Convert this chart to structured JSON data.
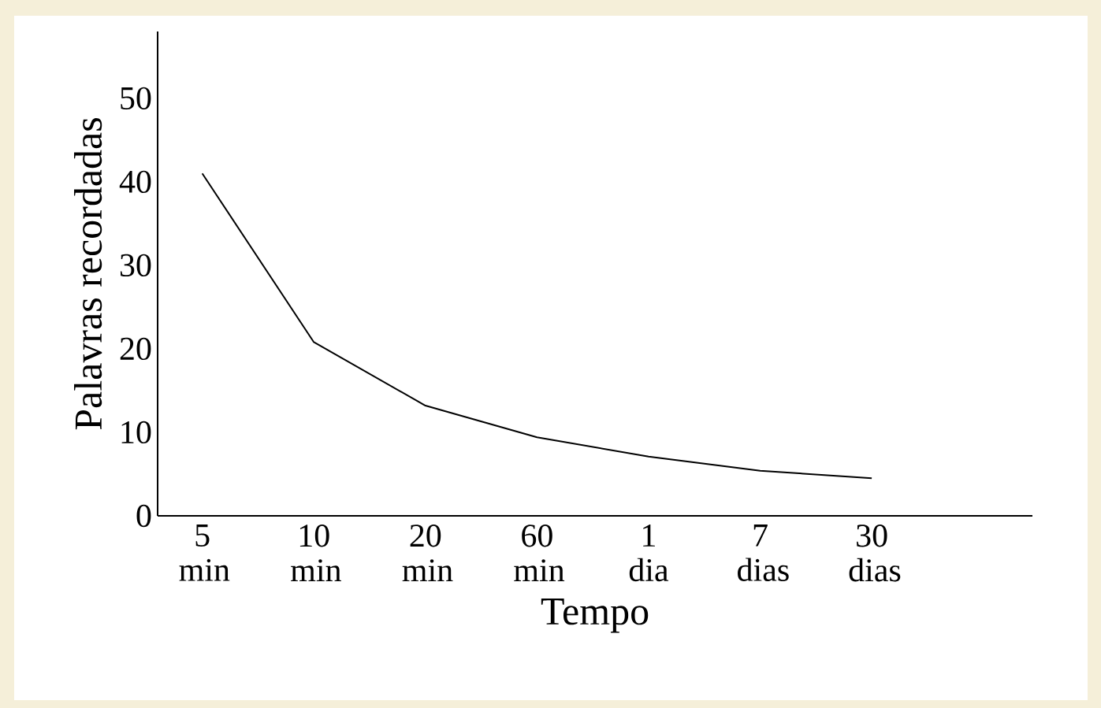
{
  "chart_data": {
    "type": "line",
    "xlabel": "Tempo",
    "ylabel": "Palavras recordadas",
    "categories": [
      "5 min",
      "10 min",
      "20 min",
      "60 min",
      "1 dia",
      "7 dias",
      "30 dias"
    ],
    "values": [
      41,
      20.8,
      13.2,
      9.4,
      7.1,
      5.4,
      4.5
    ],
    "color": "#000000",
    "ylim": [
      0,
      58
    ],
    "yticks": [
      0,
      10,
      20,
      30,
      40,
      50
    ]
  }
}
